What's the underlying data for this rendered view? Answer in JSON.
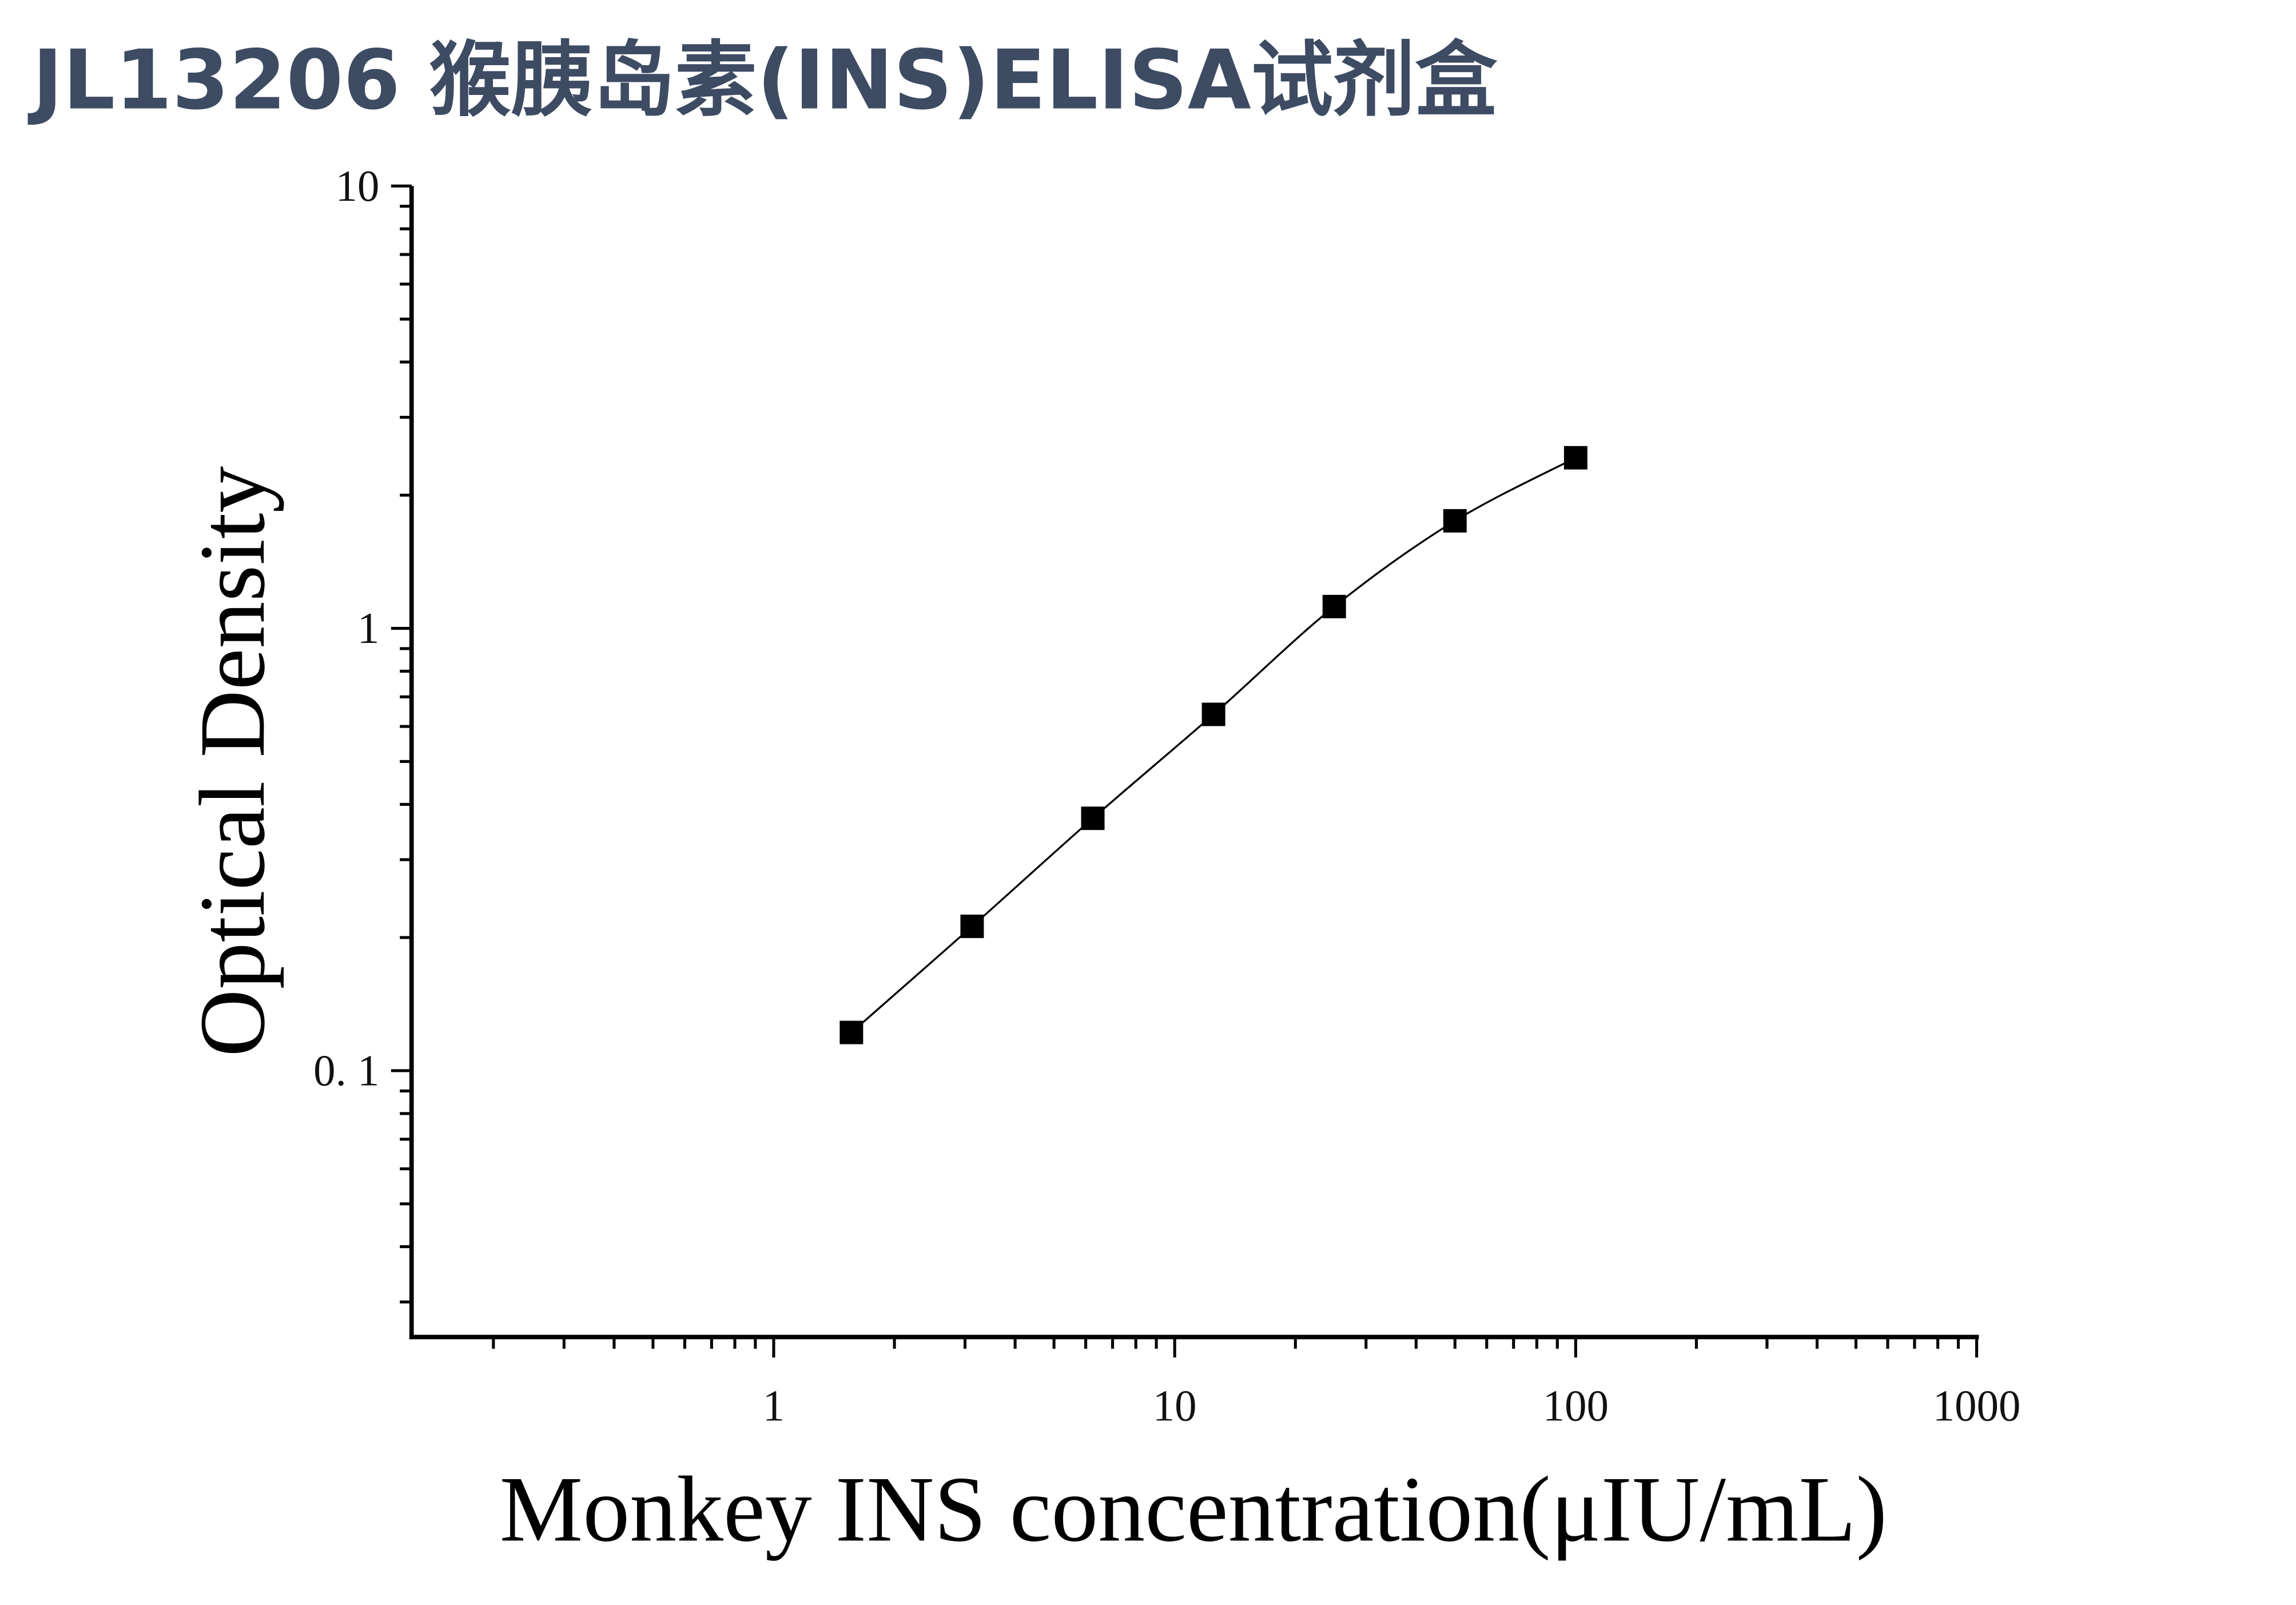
{
  "chart_data": {
    "type": "scatter",
    "title": "JL13206 猴胰岛素(INS)ELISA试剂盒",
    "x_label": "Monkey INS concentration(μIU/mL)",
    "y_label": "Optical Density",
    "log_x": true,
    "log_y": true,
    "xlim": [
      0.125,
      1000
    ],
    "ylim": [
      0.025,
      10
    ],
    "xticks": [
      1,
      10,
      100,
      1000
    ],
    "yticks": [
      {
        "value": 0.1,
        "label": "0. 1"
      },
      1,
      10
    ],
    "xminor_ticks": [
      0.2,
      0.3,
      0.4,
      0.5,
      0.6,
      0.7,
      0.8,
      0.9,
      2,
      3,
      4,
      5,
      6,
      7,
      8,
      9,
      20,
      30,
      40,
      50,
      60,
      70,
      80,
      90,
      200,
      300,
      400,
      500,
      600,
      700,
      800,
      900
    ],
    "yminor_ticks": [
      0.03,
      0.04,
      0.05,
      0.06,
      0.07,
      0.08,
      0.09,
      0.2,
      0.3,
      0.4,
      0.5,
      0.6,
      0.7,
      0.8,
      0.9,
      2,
      3,
      4,
      5,
      6,
      7,
      8,
      9
    ],
    "series": [
      {
        "color": "#000000",
        "x": [
          1.5625,
          3.125,
          6.25,
          12.5,
          25,
          50,
          100
        ],
        "values": [
          0.122,
          0.212,
          0.372,
          0.639,
          1.12,
          1.75,
          2.43
        ]
      }
    ]
  }
}
